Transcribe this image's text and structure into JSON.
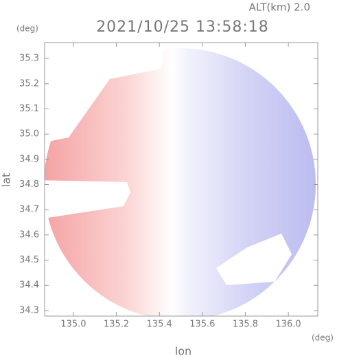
{
  "chart_data": {
    "type": "map",
    "title": "2021/10/25 13:58:18",
    "annotation": "ALT(km) 2.0",
    "x_label": "lon",
    "y_label": "lat",
    "x_unit": "(deg)",
    "y_unit": "(deg)",
    "xlim": [
      134.866,
      136.137
    ],
    "ylim": [
      34.278,
      35.363
    ],
    "xticks": [
      {
        "value": 135,
        "label": "135.0"
      },
      {
        "value": 135.2,
        "label": "135.2"
      },
      {
        "value": 135.4,
        "label": "135.4"
      },
      {
        "value": 135.6,
        "label": "135.6"
      },
      {
        "value": 135.8,
        "label": "135.8"
      },
      {
        "value": 136,
        "label": "136.0"
      }
    ],
    "yticks": [
      {
        "value": 34.3,
        "label": "34.3"
      },
      {
        "value": 34.4,
        "label": "34.4"
      },
      {
        "value": 34.5,
        "label": "34.5"
      },
      {
        "value": 34.6,
        "label": "34.6"
      },
      {
        "value": 34.7,
        "label": "34.7"
      },
      {
        "value": 34.8,
        "label": "34.8"
      },
      {
        "value": 34.9,
        "label": "34.9"
      },
      {
        "value": 35,
        "label": "35.0"
      },
      {
        "value": 35.1,
        "label": "35.1"
      },
      {
        "value": 35.2,
        "label": "35.2"
      },
      {
        "value": 35.3,
        "label": "35.3"
      }
    ]
  }
}
